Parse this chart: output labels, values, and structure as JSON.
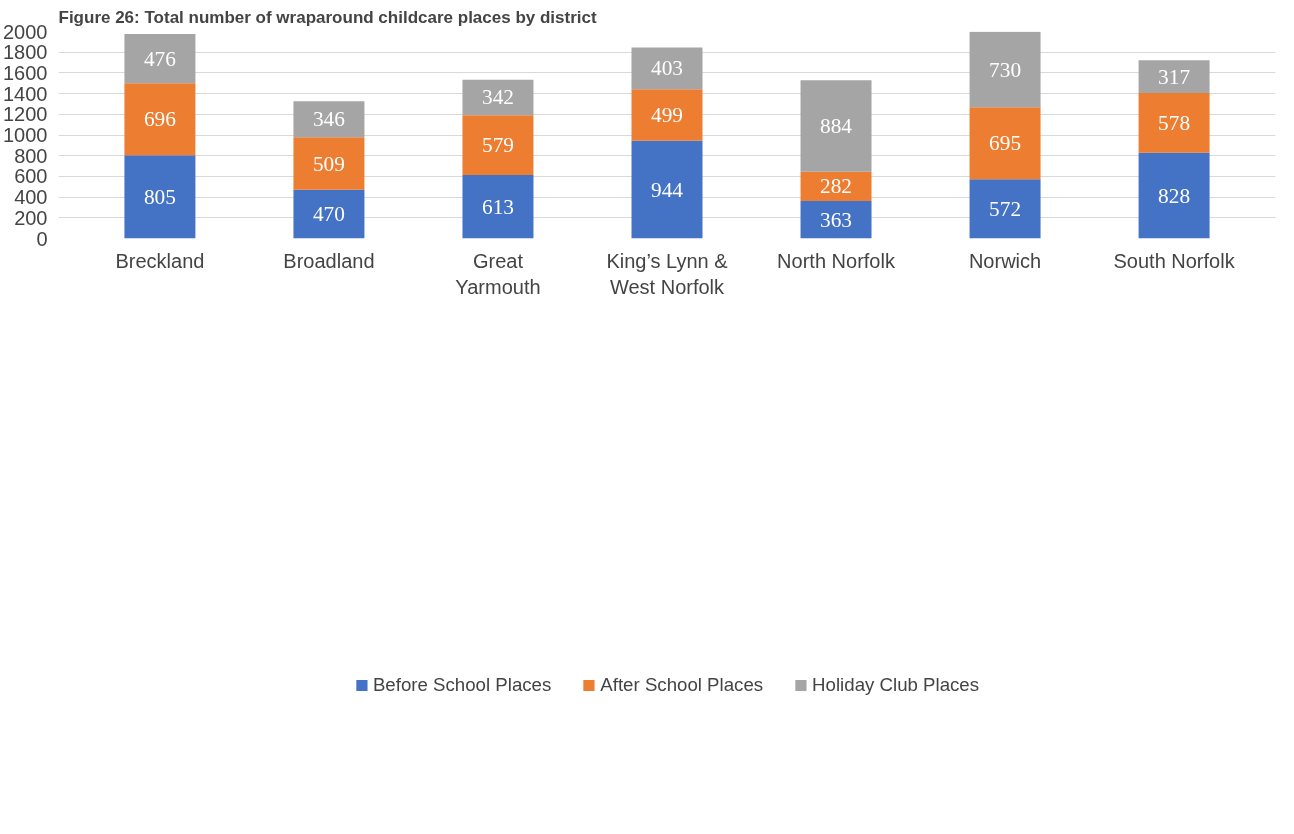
{
  "chart_data": {
    "type": "bar",
    "stacked": true,
    "title": "Figure 26: Total number of wraparound childcare places by district",
    "categories": [
      "Breckland",
      "Broadland",
      "Great\nYarmouth",
      "King’s Lynn &\nWest Norfolk",
      "North Norfolk",
      "Norwich",
      "South Norfolk"
    ],
    "series": [
      {
        "name": "Before School Places",
        "color": "#4472c4",
        "values": [
          805,
          470,
          613,
          944,
          363,
          572,
          828
        ]
      },
      {
        "name": "After School Places",
        "color": "#ed7d31",
        "values": [
          696,
          509,
          579,
          499,
          282,
          695,
          578
        ]
      },
      {
        "name": "Holiday Club Places",
        "color": "#a5a5a5",
        "values": [
          476,
          346,
          342,
          403,
          884,
          730,
          317
        ]
      }
    ],
    "ylim": [
      0,
      2000
    ],
    "yticks": [
      0,
      200,
      400,
      600,
      800,
      1000,
      1200,
      1400,
      1600,
      1800,
      2000
    ],
    "grid": "y",
    "legend": "bottom",
    "data_labels": true
  }
}
